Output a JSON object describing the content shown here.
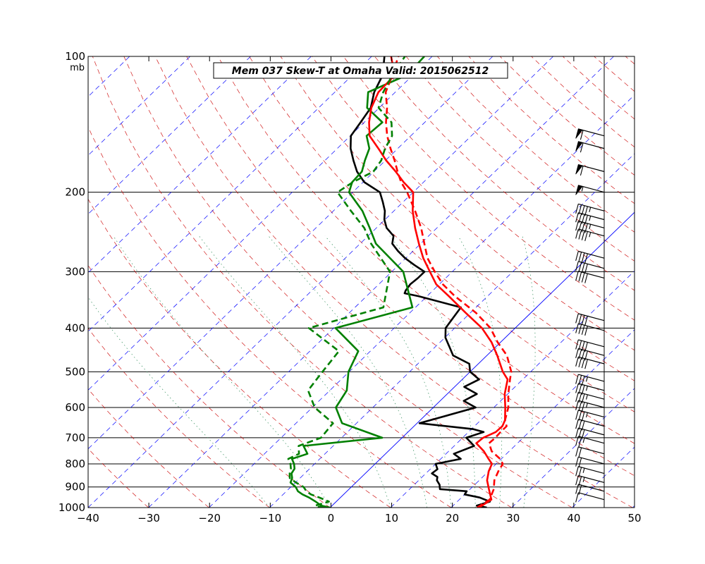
{
  "chart_data": {
    "type": "skew-t",
    "title": "Mem 037  Skew-T at Omaha   Valid: 2015062512",
    "pressure_unit": "mb",
    "x_ticks": [
      -40,
      -30,
      -20,
      -10,
      0,
      10,
      20,
      30,
      40,
      50
    ],
    "pressure_ticks": [
      100,
      200,
      300,
      400,
      500,
      600,
      700,
      800,
      900,
      1000
    ],
    "xlim": [
      -40,
      50
    ],
    "ylim": [
      1000,
      100
    ],
    "y_scale": "log",
    "colors": {
      "temperature": "#000000",
      "dewpoint": "#008000",
      "ensemble_temperature": "#ff0000",
      "ensemble_dewpoint": "#008000",
      "isotherm": "#0000ff",
      "dry_adiabat": "#cc0000",
      "moist_adiabat": "#2e8b57",
      "isobar": "#000000"
    },
    "series": [
      {
        "kind": "temperature",
        "color": "#000000",
        "style": "solid",
        "points": [
          [
            1000,
            25.9
          ],
          [
            990,
            23.9
          ],
          [
            970,
            25.4
          ],
          [
            950,
            23.0
          ],
          [
            935,
            20.0
          ],
          [
            920,
            19.8
          ],
          [
            910,
            15.0
          ],
          [
            890,
            14.2
          ],
          [
            870,
            13.0
          ],
          [
            855,
            12.5
          ],
          [
            840,
            11.0
          ],
          [
            822,
            11.2
          ],
          [
            800,
            10.0
          ],
          [
            780,
            13.3
          ],
          [
            760,
            11.3
          ],
          [
            730,
            13.3
          ],
          [
            700,
            10.6
          ],
          [
            680,
            12.5
          ],
          [
            670,
            10.3
          ],
          [
            650,
            0.4
          ],
          [
            600,
            7.0
          ],
          [
            580,
            3.9
          ],
          [
            560,
            4.9
          ],
          [
            540,
            1.6
          ],
          [
            520,
            2.8
          ],
          [
            500,
            0.0
          ],
          [
            480,
            -1.5
          ],
          [
            460,
            -5.6
          ],
          [
            440,
            -7.7
          ],
          [
            420,
            -9.9
          ],
          [
            400,
            -11.5
          ],
          [
            360,
            -12.5
          ],
          [
            340,
            -21.4
          ],
          [
            335,
            -24.2
          ],
          [
            330,
            -24.5
          ],
          [
            320,
            -24.8
          ],
          [
            310,
            -24.6
          ],
          [
            300,
            -24.6
          ],
          [
            290,
            -27.4
          ],
          [
            280,
            -30.1
          ],
          [
            270,
            -32.5
          ],
          [
            260,
            -34.7
          ],
          [
            250,
            -35.8
          ],
          [
            240,
            -38.3
          ],
          [
            230,
            -40.1
          ],
          [
            220,
            -41.5
          ],
          [
            210,
            -43.4
          ],
          [
            200,
            -45.5
          ],
          [
            190,
            -49.8
          ],
          [
            180,
            -52.8
          ],
          [
            170,
            -55.3
          ],
          [
            160,
            -57.8
          ],
          [
            150,
            -59.9
          ],
          [
            140,
            -60.6
          ],
          [
            130,
            -61.4
          ],
          [
            120,
            -63.5
          ],
          [
            110,
            -65.0
          ],
          [
            100,
            -67.9
          ]
        ]
      },
      {
        "kind": "dewpoint",
        "color": "#008000",
        "style": "solid",
        "points": [
          [
            1000,
            0.0
          ],
          [
            990,
            -1.8
          ],
          [
            970,
            -3.4
          ],
          [
            950,
            -5.2
          ],
          [
            935,
            -6.8
          ],
          [
            920,
            -8.1
          ],
          [
            900,
            -9.2
          ],
          [
            880,
            -10.8
          ],
          [
            860,
            -11.3
          ],
          [
            840,
            -12.2
          ],
          [
            820,
            -12.5
          ],
          [
            800,
            -13.4
          ],
          [
            780,
            -14.6
          ],
          [
            760,
            -12.9
          ],
          [
            730,
            -14.9
          ],
          [
            700,
            -3.3
          ],
          [
            650,
            -12.4
          ],
          [
            600,
            -16.1
          ],
          [
            550,
            -17.2
          ],
          [
            500,
            -20.1
          ],
          [
            450,
            -22.0
          ],
          [
            400,
            -29.7
          ],
          [
            360,
            -20.5
          ],
          [
            300,
            -28.1
          ],
          [
            260,
            -37.4
          ],
          [
            240,
            -41.1
          ],
          [
            220,
            -45.2
          ],
          [
            200,
            -50.6
          ],
          [
            190,
            -51.8
          ],
          [
            180,
            -52.0
          ],
          [
            170,
            -53.4
          ],
          [
            160,
            -54.7
          ],
          [
            150,
            -57.3
          ],
          [
            140,
            -57.0
          ],
          [
            130,
            -62.0
          ],
          [
            120,
            -64.5
          ],
          [
            110,
            -61.0
          ],
          [
            100,
            -61.3
          ]
        ]
      },
      {
        "kind": "ensemble_temperature",
        "color": "#ff0000",
        "style": "solid",
        "points": [
          [
            1000,
            24.6
          ],
          [
            960,
            25.3
          ],
          [
            910,
            23.1
          ],
          [
            870,
            21.3
          ],
          [
            830,
            20.0
          ],
          [
            800,
            19.3
          ],
          [
            780,
            17.9
          ],
          [
            750,
            15.8
          ],
          [
            720,
            13.2
          ],
          [
            700,
            13.4
          ],
          [
            680,
            14.5
          ],
          [
            660,
            14.6
          ],
          [
            640,
            14.0
          ],
          [
            600,
            11.9
          ],
          [
            560,
            9.5
          ],
          [
            520,
            7.5
          ],
          [
            500,
            5.4
          ],
          [
            460,
            1.7
          ],
          [
            430,
            -1.5
          ],
          [
            400,
            -5.5
          ],
          [
            370,
            -10.8
          ],
          [
            340,
            -16.4
          ],
          [
            320,
            -20.5
          ],
          [
            300,
            -23.7
          ],
          [
            280,
            -27.1
          ],
          [
            260,
            -30.3
          ],
          [
            240,
            -33.6
          ],
          [
            220,
            -36.9
          ],
          [
            200,
            -40.0
          ],
          [
            190,
            -43.3
          ],
          [
            180,
            -46.4
          ],
          [
            170,
            -49.9
          ],
          [
            160,
            -53.2
          ],
          [
            150,
            -56.8
          ],
          [
            140,
            -59.2
          ],
          [
            130,
            -61.3
          ],
          [
            120,
            -62.8
          ],
          [
            110,
            -63.0
          ],
          [
            100,
            -66.8
          ]
        ]
      },
      {
        "kind": "ensemble_temperature",
        "color": "#ff0000",
        "style": "dashed",
        "points": [
          [
            1000,
            24.3
          ],
          [
            960,
            25.0
          ],
          [
            910,
            23.9
          ],
          [
            870,
            22.5
          ],
          [
            830,
            21.6
          ],
          [
            800,
            21.1
          ],
          [
            780,
            19.8
          ],
          [
            750,
            17.1
          ],
          [
            720,
            15.3
          ],
          [
            700,
            15.4
          ],
          [
            680,
            15.3
          ],
          [
            660,
            15.3
          ],
          [
            640,
            14.0
          ],
          [
            600,
            12.4
          ],
          [
            560,
            10.1
          ],
          [
            520,
            7.9
          ],
          [
            500,
            6.8
          ],
          [
            460,
            3.3
          ],
          [
            430,
            -0.5
          ],
          [
            400,
            -4.1
          ],
          [
            370,
            -9.1
          ],
          [
            340,
            -15.4
          ],
          [
            320,
            -19.4
          ],
          [
            300,
            -22.9
          ],
          [
            280,
            -26.4
          ],
          [
            260,
            -29.4
          ],
          [
            240,
            -32.6
          ],
          [
            220,
            -36.5
          ],
          [
            200,
            -41.0
          ],
          [
            190,
            -43.7
          ],
          [
            180,
            -46.1
          ],
          [
            170,
            -48.5
          ],
          [
            160,
            -51.2
          ],
          [
            150,
            -53.9
          ],
          [
            140,
            -56.4
          ],
          [
            130,
            -58.7
          ],
          [
            120,
            -61.6
          ],
          [
            110,
            -63.4
          ],
          [
            100,
            -65.6
          ]
        ]
      },
      {
        "kind": "ensemble_dewpoint",
        "color": "#008000",
        "style": "dashed",
        "points": [
          [
            1000,
            -1.0
          ],
          [
            990,
            -2.8
          ],
          [
            970,
            -1.2
          ],
          [
            950,
            -3.5
          ],
          [
            935,
            -5.4
          ],
          [
            920,
            -6.7
          ],
          [
            900,
            -7.9
          ],
          [
            880,
            -9.9
          ],
          [
            860,
            -11.7
          ],
          [
            840,
            -12.5
          ],
          [
            820,
            -13.1
          ],
          [
            800,
            -14.0
          ],
          [
            780,
            -15.2
          ],
          [
            760,
            -14.3
          ],
          [
            730,
            -15.7
          ],
          [
            700,
            -13.4
          ],
          [
            650,
            -13.9
          ],
          [
            600,
            -19.6
          ],
          [
            550,
            -23.6
          ],
          [
            500,
            -24.4
          ],
          [
            450,
            -25.2
          ],
          [
            400,
            -34.1
          ],
          [
            360,
            -25.3
          ],
          [
            300,
            -30.3
          ],
          [
            260,
            -38.2
          ],
          [
            240,
            -42.0
          ],
          [
            220,
            -47.1
          ],
          [
            200,
            -52.5
          ],
          [
            190,
            -51.7
          ],
          [
            180,
            -50.1
          ],
          [
            170,
            -50.7
          ],
          [
            160,
            -52.1
          ],
          [
            150,
            -53.1
          ],
          [
            140,
            -55.5
          ],
          [
            130,
            -60.1
          ],
          [
            120,
            -62.0
          ],
          [
            110,
            -63.4
          ],
          [
            100,
            -64.5
          ]
        ]
      }
    ],
    "wind_barbs": [
      {
        "p": 960,
        "speed": 10
      },
      {
        "p": 920,
        "speed": 20
      },
      {
        "p": 880,
        "speed": 25
      },
      {
        "p": 840,
        "speed": 25
      },
      {
        "p": 800,
        "speed": 20
      },
      {
        "p": 760,
        "speed": 20
      },
      {
        "p": 720,
        "speed": 25
      },
      {
        "p": 690,
        "speed": 30
      },
      {
        "p": 660,
        "speed": 30
      },
      {
        "p": 630,
        "speed": 35
      },
      {
        "p": 600,
        "speed": 35
      },
      {
        "p": 575,
        "speed": 35
      },
      {
        "p": 550,
        "speed": 35
      },
      {
        "p": 525,
        "speed": 35
      },
      {
        "p": 480,
        "speed": 40
      },
      {
        "p": 460,
        "speed": 40
      },
      {
        "p": 440,
        "speed": 40
      },
      {
        "p": 405,
        "speed": 40
      },
      {
        "p": 385,
        "speed": 40
      },
      {
        "p": 310,
        "speed": 40
      },
      {
        "p": 295,
        "speed": 40
      },
      {
        "p": 280,
        "speed": 40
      },
      {
        "p": 250,
        "speed": 45
      },
      {
        "p": 240,
        "speed": 45
      },
      {
        "p": 230,
        "speed": 45
      },
      {
        "p": 220,
        "speed": 45
      },
      {
        "p": 200,
        "speed": 55
      },
      {
        "p": 180,
        "speed": 60
      },
      {
        "p": 160,
        "speed": 60
      },
      {
        "p": 150,
        "speed": 60
      }
    ]
  }
}
